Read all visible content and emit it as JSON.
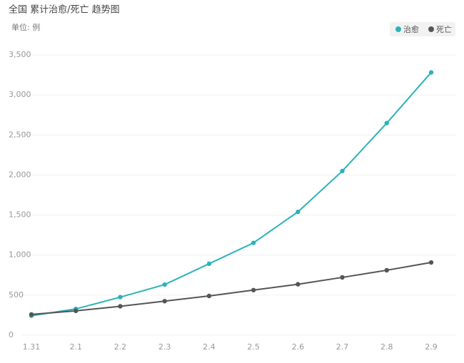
{
  "chart_data": {
    "type": "line",
    "title": "全国 累计治愈/死亡 趋势图",
    "subtitle": "单位: 例",
    "categories": [
      "1.31",
      "2.1",
      "2.2",
      "2.3",
      "2.4",
      "2.5",
      "2.6",
      "2.7",
      "2.8",
      "2.9"
    ],
    "series": [
      {
        "name": "治愈",
        "color": "#2bb3b8",
        "values": [
          243,
          328,
          475,
          632,
          892,
          1153,
          1540,
          2050,
          2649,
          3281
        ]
      },
      {
        "name": "死亡",
        "color": "#555555",
        "values": [
          259,
          304,
          361,
          425,
          490,
          563,
          636,
          722,
          811,
          908
        ]
      }
    ],
    "ylim": [
      0,
      3500
    ],
    "yticks": [
      0,
      500,
      {
        "value": 1000,
        "label": "1,000"
      },
      {
        "value": 1500,
        "label": "1,500"
      },
      {
        "value": 2000,
        "label": "2,000"
      },
      {
        "value": 2500,
        "label": "2,500"
      },
      {
        "value": 3000,
        "label": "3,000"
      },
      {
        "value": 3500,
        "label": "3,500"
      }
    ],
    "grid": true,
    "legend": "top-right"
  }
}
